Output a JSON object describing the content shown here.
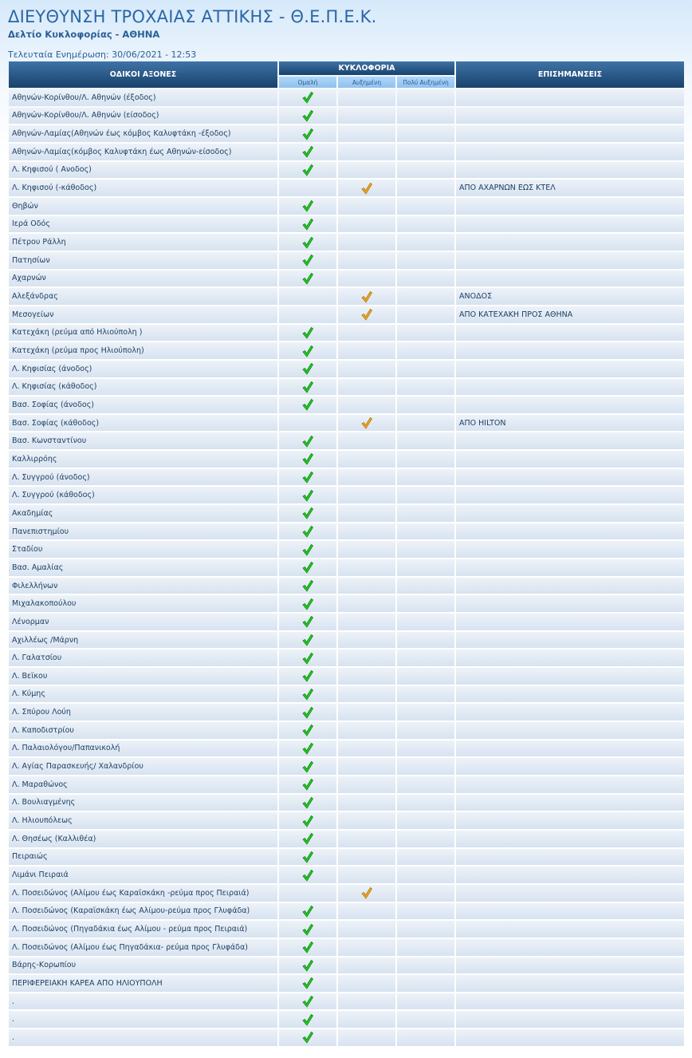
{
  "header": {
    "title": "ΔΙΕΥΘΥΝΣΗ ΤΡΟΧΑΙΑΣ ΑΤΤΙΚΗΣ - Θ.Ε.Π.Ε.Κ.",
    "subtitle": "Δελτίο Κυκλοφορίας - ΑΘΗΝΑ",
    "updated": "Τελευταία Ενημέρωση: 30/06/2021 - 12:53"
  },
  "columns": {
    "road": "ΟΔΙΚΟΙ ΑΞΟΝΕΣ",
    "traffic": "ΚΥΚΛΟΦΟΡΙΑ",
    "normal": "Ομαλή",
    "increased": "Αυξημένη",
    "very_increased": "Πολύ Αυξημένη",
    "notes": "ΕΠΙΣΗΜΑΝΣΕΙΣ"
  },
  "colors": {
    "normal": "#22cc22",
    "increased": "#f0a820",
    "header": "#1f4f7e"
  },
  "icons": {
    "normal": "green-check-icon",
    "increased": "orange-check-icon"
  },
  "rows": [
    {
      "road": "Αθηνών-Κορίνθου/Λ. Αθηνών (έξοδος)",
      "status": "normal",
      "note": ""
    },
    {
      "road": "Αθηνών-Κορίνθου/Λ. Αθηνών (είσοδος)",
      "status": "normal",
      "note": ""
    },
    {
      "road": "Αθηνών-Λαμίας(Αθηνών έως κόμβος Καλυφτάκη -έξοδος)",
      "status": "normal",
      "note": ""
    },
    {
      "road": "Αθηνών-Λαμίας(κόμβος Καλυφτάκη έως Αθηνών-είσοδος)",
      "status": "normal",
      "note": ""
    },
    {
      "road": "Λ. Κηφισού ( Ανοδος)",
      "status": "normal",
      "note": ""
    },
    {
      "road": "Λ. Κηφισού (-κάθοδος)",
      "status": "increased",
      "note": "ΑΠΟ ΑΧΑΡΝΩΝ ΕΩΣ ΚΤΕΛ"
    },
    {
      "road": "Θηβών",
      "status": "normal",
      "note": ""
    },
    {
      "road": "Ιερά Οδός",
      "status": "normal",
      "note": ""
    },
    {
      "road": "Πέτρου Ράλλη",
      "status": "normal",
      "note": ""
    },
    {
      "road": "Πατησίων",
      "status": "normal",
      "note": ""
    },
    {
      "road": "Αχαρνών",
      "status": "normal",
      "note": ""
    },
    {
      "road": "Αλεξάνδρας",
      "status": "increased",
      "note": "ΑΝΟΔΟΣ"
    },
    {
      "road": "Μεσογείων",
      "status": "increased",
      "note": "ΑΠΟ ΚΑΤΕΧΑΚΗ ΠΡΟΣ ΑΘΗΝΑ"
    },
    {
      "road": "Κατεχάκη (ρεύμα από Ηλιούπολη )",
      "status": "normal",
      "note": ""
    },
    {
      "road": "Κατεχάκη (ρεύμα προς Ηλιούπολη)",
      "status": "normal",
      "note": ""
    },
    {
      "road": "Λ. Κηφισίας (άνοδος)",
      "status": "normal",
      "note": ""
    },
    {
      "road": "Λ. Κηφισίας (κάθοδος)",
      "status": "normal",
      "note": ""
    },
    {
      "road": "Βασ. Σοφίας (άνοδος)",
      "status": "normal",
      "note": ""
    },
    {
      "road": "Βασ. Σοφίας (κάθοδος)",
      "status": "increased",
      "note": "ΑΠΟ HILTON"
    },
    {
      "road": "Βασ. Κωνσταντίνου",
      "status": "normal",
      "note": ""
    },
    {
      "road": "Καλλιρρόης",
      "status": "normal",
      "note": ""
    },
    {
      "road": "Λ. Συγγρού (άνοδος)",
      "status": "normal",
      "note": ""
    },
    {
      "road": "Λ. Συγγρού (κάθοδος)",
      "status": "normal",
      "note": ""
    },
    {
      "road": "Ακαδημίας",
      "status": "normal",
      "note": ""
    },
    {
      "road": "Πανεπιστημίου",
      "status": "normal",
      "note": ""
    },
    {
      "road": "Σταδίου",
      "status": "normal",
      "note": ""
    },
    {
      "road": "Βασ. Αμαλίας",
      "status": "normal",
      "note": ""
    },
    {
      "road": "Φιλελλήνων",
      "status": "normal",
      "note": ""
    },
    {
      "road": "Μιχαλακοπούλου",
      "status": "normal",
      "note": ""
    },
    {
      "road": "Λένορμαν",
      "status": "normal",
      "note": ""
    },
    {
      "road": "Αχιλλέως /Μάρνη",
      "status": "normal",
      "note": ""
    },
    {
      "road": "Λ. Γαλατσίου",
      "status": "normal",
      "note": ""
    },
    {
      "road": "Λ. Βεϊκου",
      "status": "normal",
      "note": ""
    },
    {
      "road": "Λ. Κύμης",
      "status": "normal",
      "note": ""
    },
    {
      "road": "Λ. Σπύρου Λούη",
      "status": "normal",
      "note": ""
    },
    {
      "road": "Λ. Καποδιστρίου",
      "status": "normal",
      "note": ""
    },
    {
      "road": "Λ. Παλαιολόγου/Παπανικολή",
      "status": "normal",
      "note": ""
    },
    {
      "road": "Λ. Αγίας Παρασκευής/ Χαλανδρίου",
      "status": "normal",
      "note": ""
    },
    {
      "road": "Λ. Μαραθώνος",
      "status": "normal",
      "note": ""
    },
    {
      "road": "Λ. Βουλιαγμένης",
      "status": "normal",
      "note": ""
    },
    {
      "road": "Λ. Ηλιουπόλεως",
      "status": "normal",
      "note": ""
    },
    {
      "road": "Λ. Θησέως (Καλλιθέα)",
      "status": "normal",
      "note": ""
    },
    {
      "road": "Πειραιώς",
      "status": "normal",
      "note": ""
    },
    {
      "road": "Λιμάνι Πειραιά",
      "status": "normal",
      "note": ""
    },
    {
      "road": "Λ. Ποσειδώνος (Αλίμου έως Καραϊσκάκη -ρεύμα προς Πειραιά)",
      "status": "increased",
      "note": ""
    },
    {
      "road": "Λ. Ποσειδώνος (Καραϊσκάκη έως Αλίμου-ρεύμα προς Γλυφάδα)",
      "status": "normal",
      "note": ""
    },
    {
      "road": "Λ. Ποσειδώνος (Πηγαδάκια έως Αλίμου - ρεύμα προς Πειραιά)",
      "status": "normal",
      "note": ""
    },
    {
      "road": "Λ. Ποσειδώνος (Αλίμου έως Πηγαδάκια- ρεύμα προς Γλυφάδα)",
      "status": "normal",
      "note": ""
    },
    {
      "road": "Βάρης-Κορωπίου",
      "status": "normal",
      "note": ""
    },
    {
      "road": "ΠΕΡΙΦΕΡΕΙΑΚΗ ΚΑΡΕΑ ΑΠΟ ΗΛΙΟΥΠΟΛΗ",
      "status": "normal",
      "note": ""
    },
    {
      "road": ".",
      "status": "normal",
      "note": ""
    },
    {
      "road": ".",
      "status": "normal",
      "note": ""
    },
    {
      "road": ".",
      "status": "normal",
      "note": ""
    }
  ]
}
